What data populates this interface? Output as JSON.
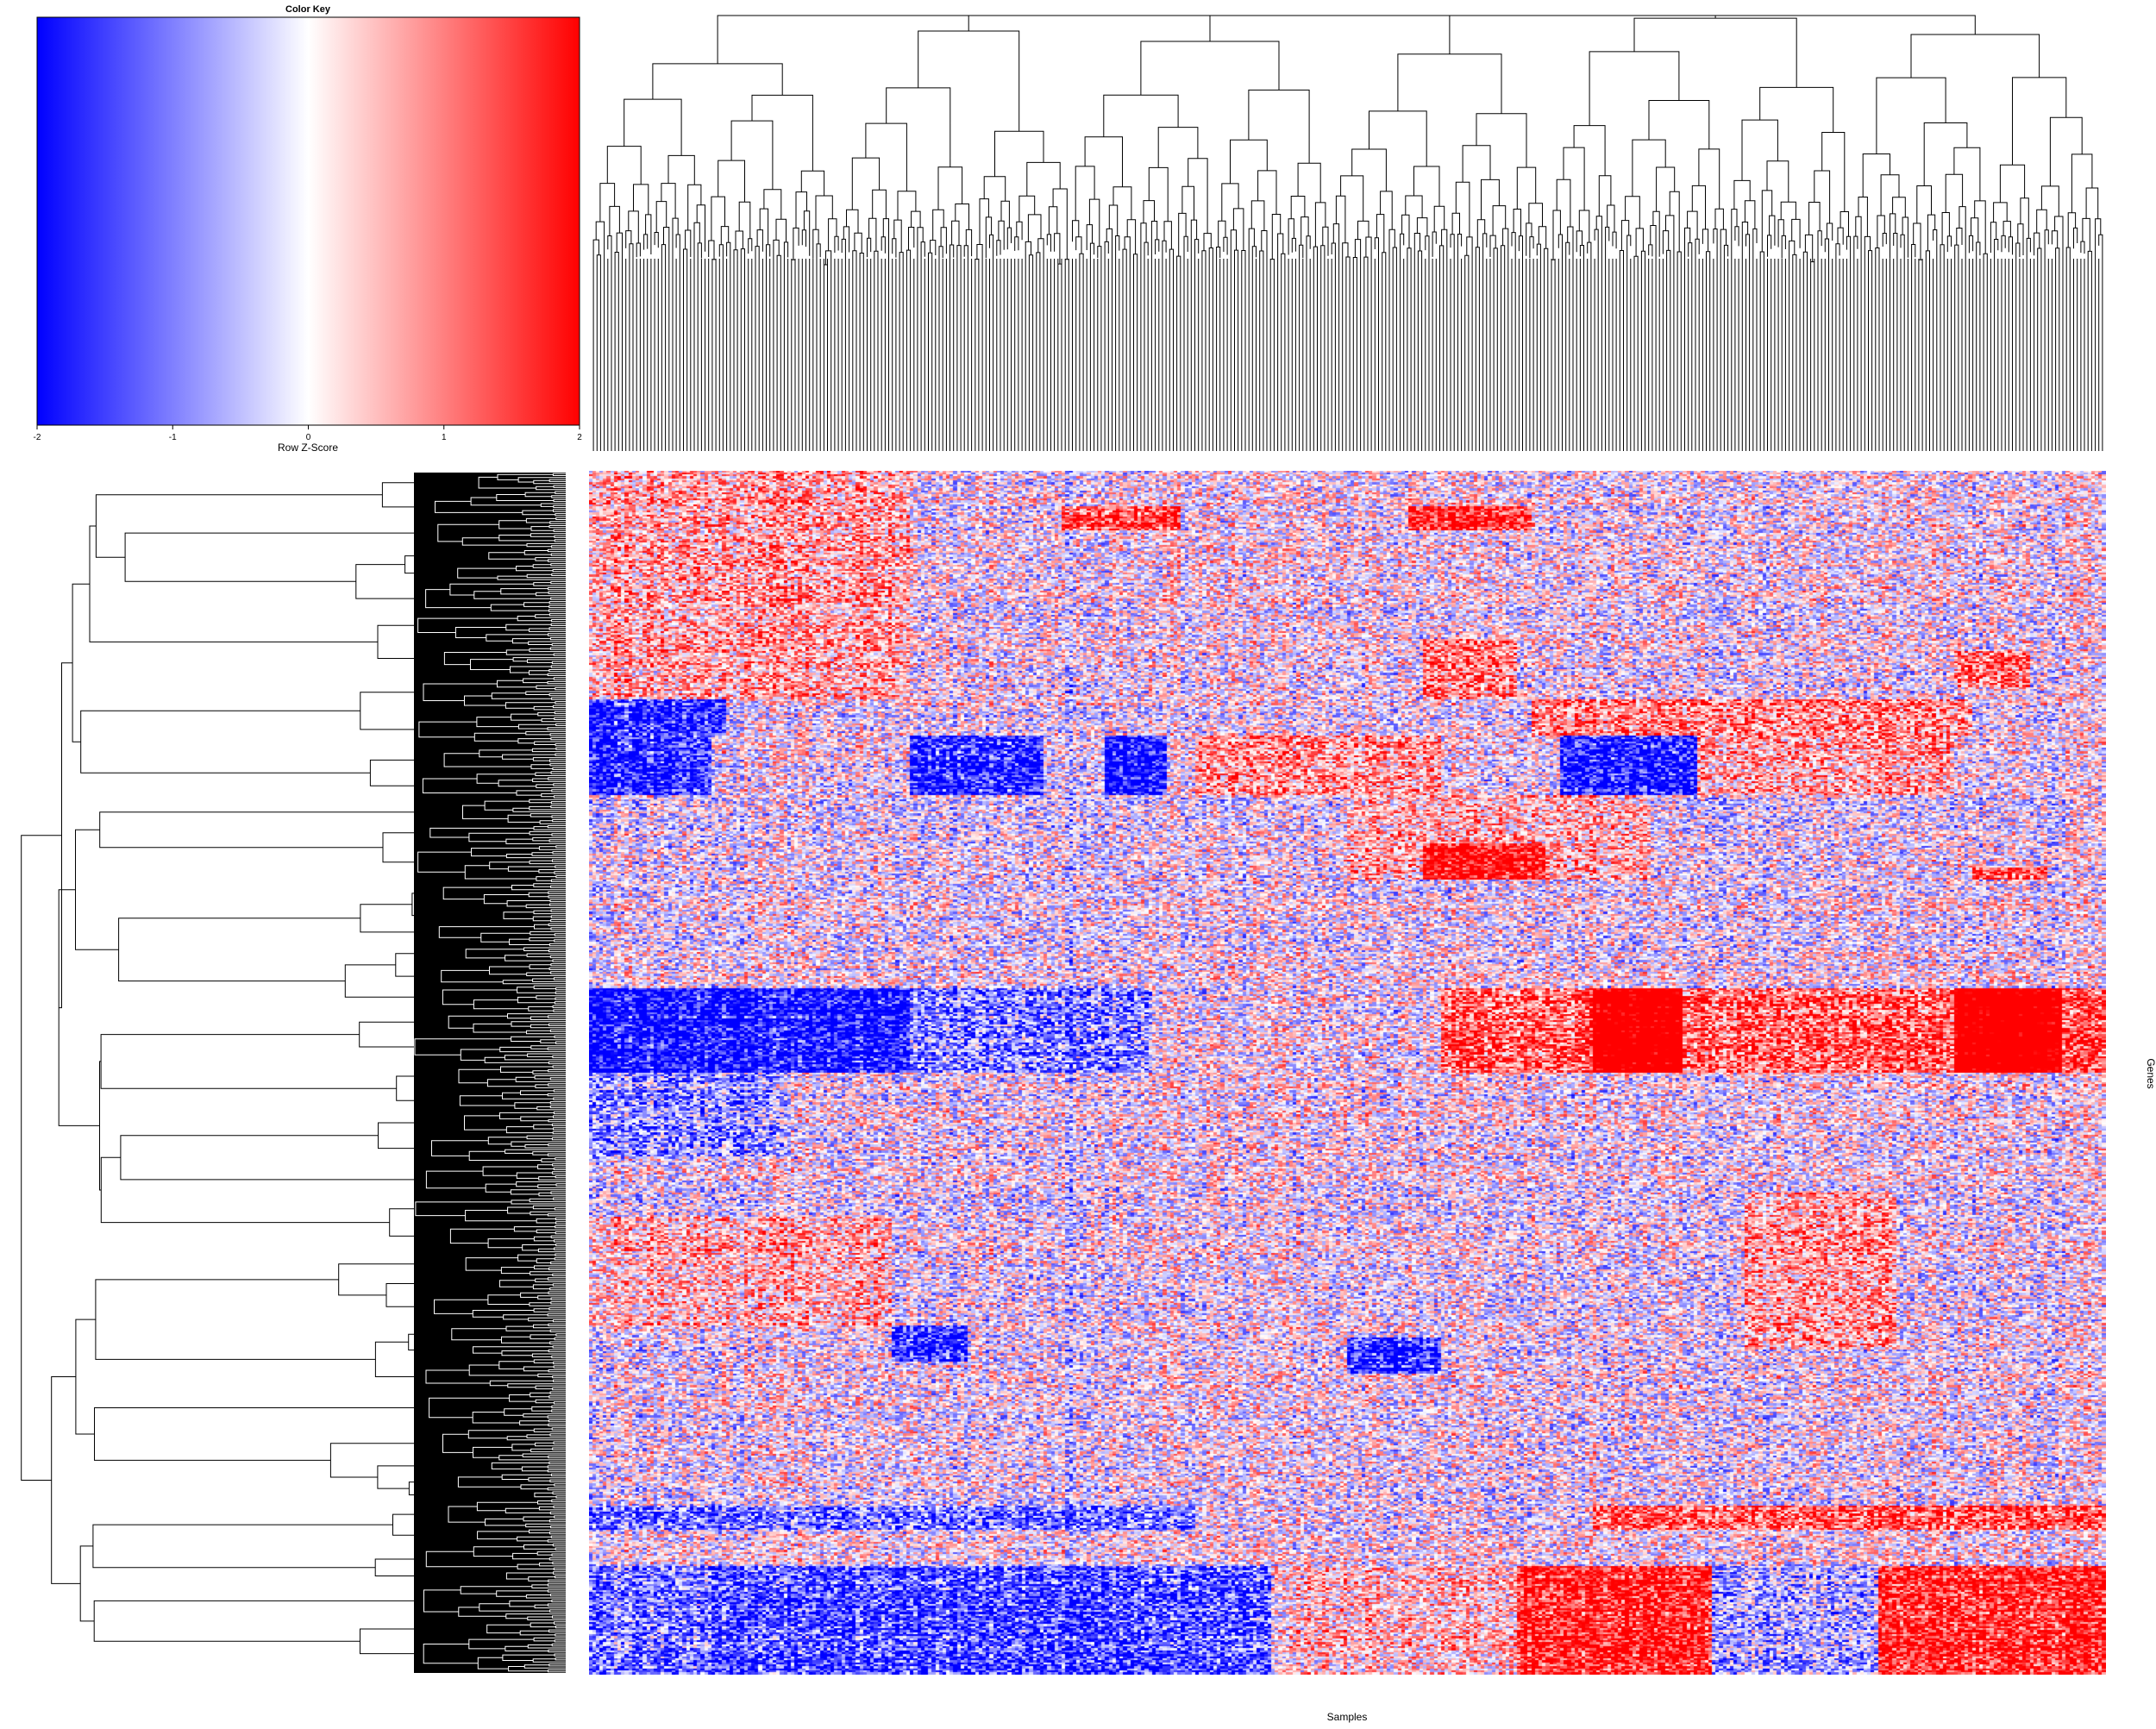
{
  "chart_data": {
    "type": "heatmap",
    "title": "",
    "xlabel": "Samples",
    "ylabel": "Genes",
    "color_key": {
      "title": "Color Key",
      "label": "Row Z-Score",
      "range": [
        -2,
        2
      ],
      "ticks": [
        -2,
        -1,
        0,
        1,
        2
      ],
      "colors": [
        "#0000ff",
        "#ffffff",
        "#ff0000"
      ]
    },
    "column_dendrogram": true,
    "row_dendrogram": true,
    "approx_columns": 420,
    "approx_rows": 600,
    "notable_blocks": [
      {
        "genes": "top cluster",
        "samples": "left half",
        "trend": "mostly positive (red)"
      },
      {
        "genes": "middle band",
        "samples": "left third",
        "trend": "strongly negative (blue)"
      },
      {
        "genes": "middle band",
        "samples": "right half",
        "trend": "strongly positive (red)"
      },
      {
        "genes": "bottom cluster",
        "samples": "left half",
        "trend": "negative (blue)"
      },
      {
        "genes": "bottom cluster",
        "samples": "right half",
        "trend": "positive (red)"
      }
    ]
  }
}
